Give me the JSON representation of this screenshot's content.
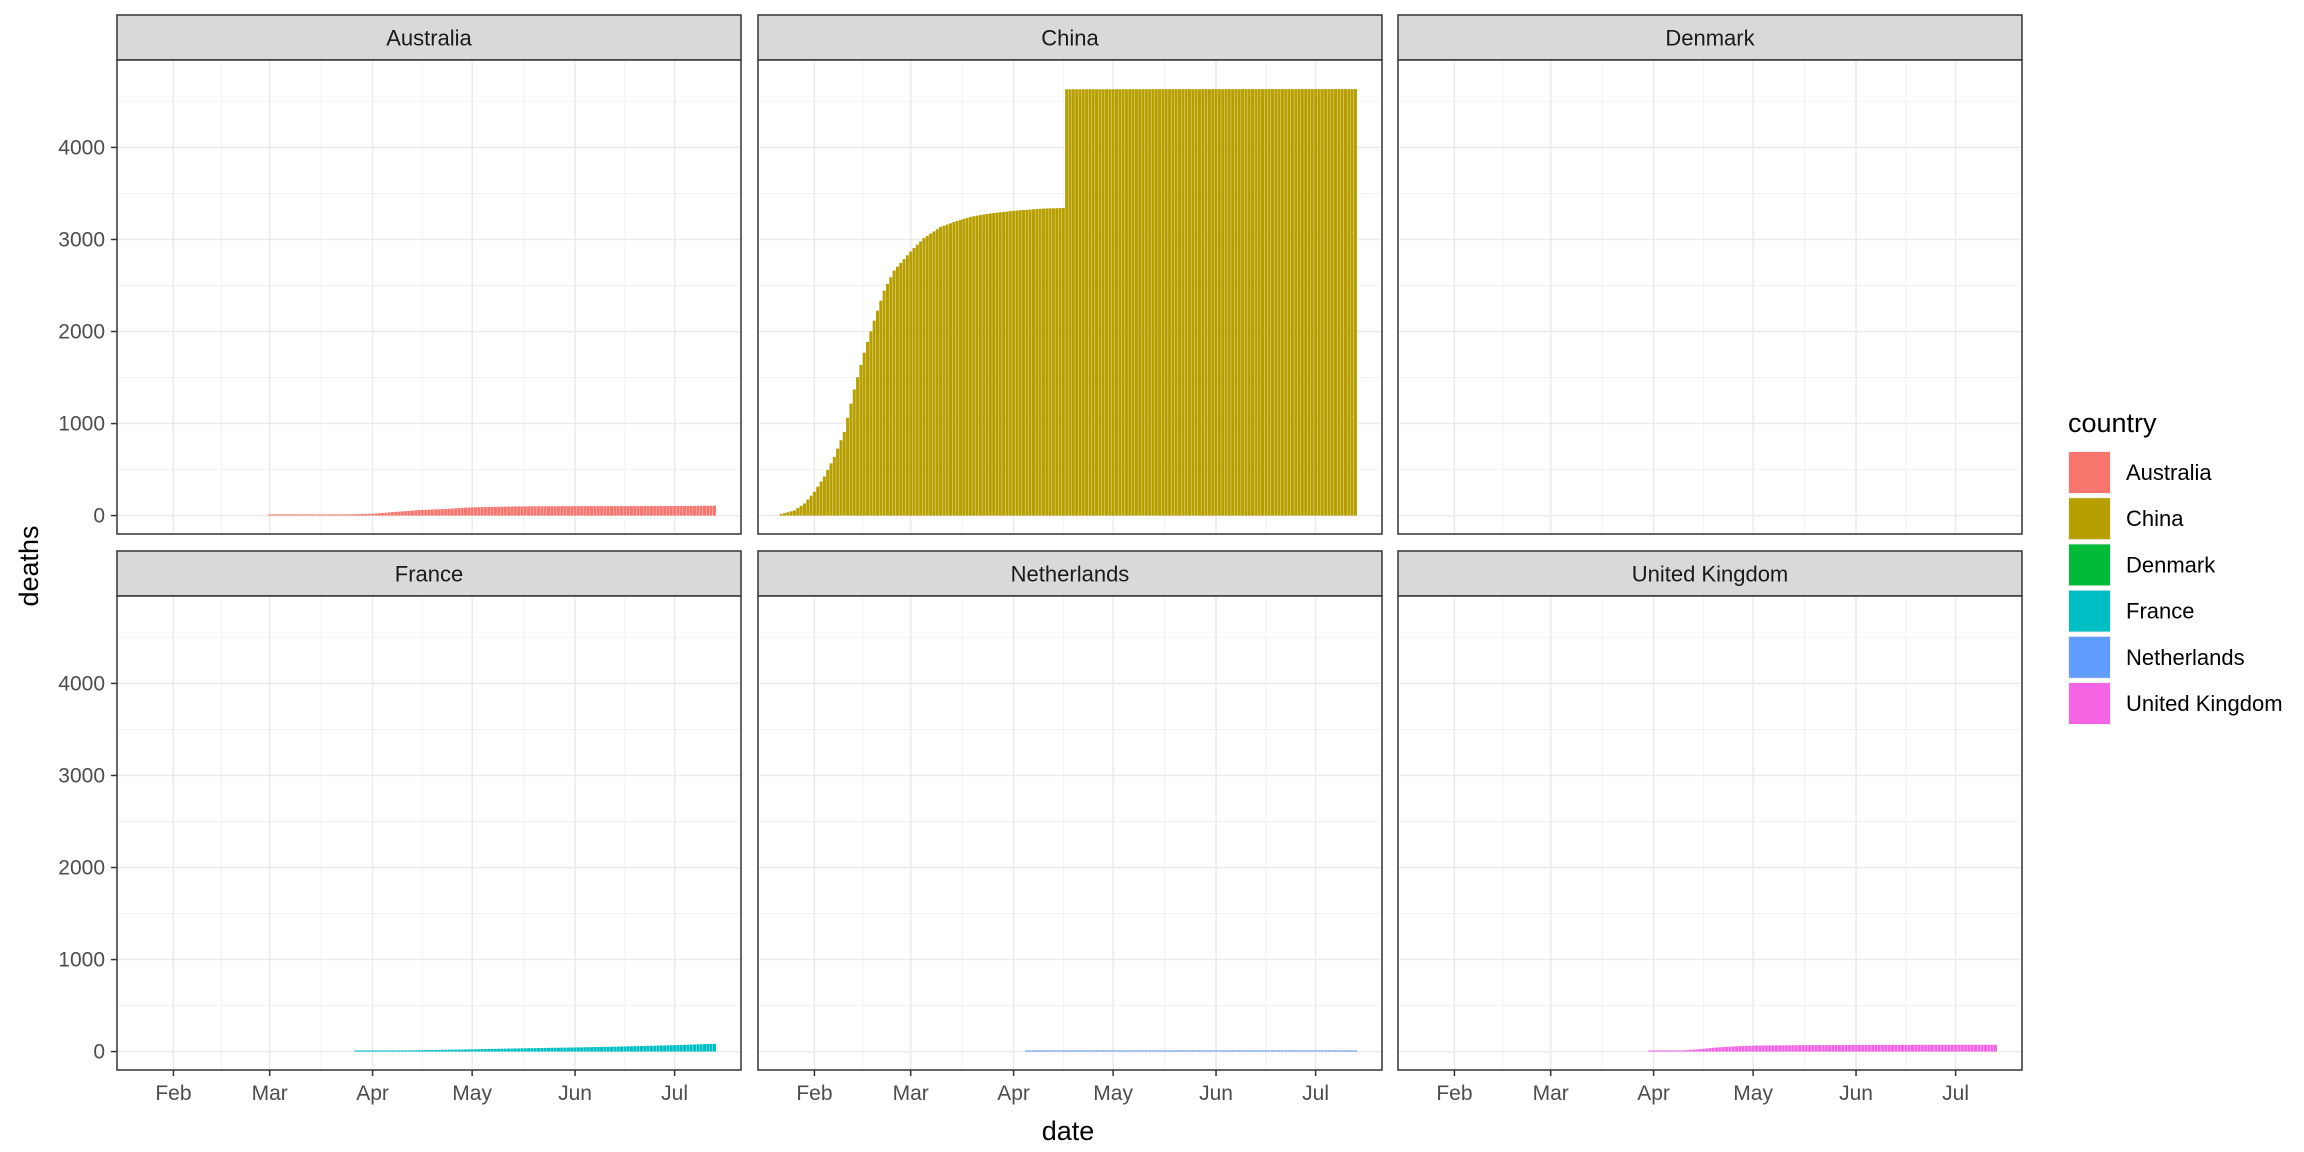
{
  "chart_data": {
    "type": "bar",
    "facet_layout": "2x3 grid, shared axes",
    "xlabel": "date",
    "ylabel": "deaths",
    "x_ticks": [
      "Feb",
      "Mar",
      "Apr",
      "May",
      "Jun",
      "Jul"
    ],
    "x_tick_dates": [
      "2020-02-01",
      "2020-03-01",
      "2020-04-01",
      "2020-05-01",
      "2020-06-01",
      "2020-07-01"
    ],
    "xlim": [
      "2020-01-15",
      "2020-07-21"
    ],
    "y_ticks": [
      0,
      1000,
      2000,
      3000,
      4000
    ],
    "ylim": [
      -200,
      4950
    ],
    "grid": true,
    "legend": {
      "title": "country",
      "position": "right",
      "entries": [
        "Australia",
        "China",
        "Denmark",
        "France",
        "Netherlands",
        "United Kingdom"
      ]
    },
    "colors": {
      "Australia": "#F8766D",
      "China": "#B79F00",
      "Denmark": "#00BA38",
      "France": "#00BFC4",
      "Netherlands": "#619CFF",
      "United Kingdom": "#F564E3"
    },
    "facets": [
      {
        "name": "Australia",
        "series": [
          [
            "2020-03-01",
            1
          ],
          [
            "2020-03-10",
            3
          ],
          [
            "2020-03-20",
            7
          ],
          [
            "2020-03-25",
            13
          ],
          [
            "2020-04-01",
            20
          ],
          [
            "2020-04-08",
            40
          ],
          [
            "2020-04-15",
            60
          ],
          [
            "2020-04-22",
            70
          ],
          [
            "2020-05-01",
            90
          ],
          [
            "2020-05-15",
            100
          ],
          [
            "2020-06-01",
            103
          ],
          [
            "2020-06-15",
            103
          ],
          [
            "2020-07-01",
            104
          ],
          [
            "2020-07-13",
            108
          ]
        ]
      },
      {
        "name": "China",
        "series": [
          [
            "2020-01-22",
            17
          ],
          [
            "2020-01-26",
            56
          ],
          [
            "2020-01-29",
            132
          ],
          [
            "2020-02-01",
            259
          ],
          [
            "2020-02-04",
            425
          ],
          [
            "2020-02-07",
            638
          ],
          [
            "2020-02-10",
            909
          ],
          [
            "2020-02-13",
            1370
          ],
          [
            "2020-02-16",
            1770
          ],
          [
            "2020-02-19",
            2118
          ],
          [
            "2020-02-22",
            2444
          ],
          [
            "2020-02-25",
            2663
          ],
          [
            "2020-03-01",
            2870
          ],
          [
            "2020-03-05",
            3015
          ],
          [
            "2020-03-10",
            3136
          ],
          [
            "2020-03-15",
            3203
          ],
          [
            "2020-03-20",
            3253
          ],
          [
            "2020-03-25",
            3283
          ],
          [
            "2020-04-01",
            3312
          ],
          [
            "2020-04-10",
            3336
          ],
          [
            "2020-04-16",
            3342
          ],
          [
            "2020-04-17",
            4632
          ],
          [
            "2020-05-15",
            4633
          ],
          [
            "2020-06-15",
            4634
          ],
          [
            "2020-07-13",
            4634
          ]
        ]
      },
      {
        "name": "Denmark",
        "series": []
      },
      {
        "name": "France",
        "series": [
          [
            "2020-03-27",
            1
          ],
          [
            "2020-04-01",
            5
          ],
          [
            "2020-04-15",
            15
          ],
          [
            "2020-05-01",
            25
          ],
          [
            "2020-05-15",
            35
          ],
          [
            "2020-06-01",
            45
          ],
          [
            "2020-06-15",
            55
          ],
          [
            "2020-07-01",
            70
          ],
          [
            "2020-07-13",
            85
          ]
        ]
      },
      {
        "name": "Netherlands",
        "series": [
          [
            "2020-04-05",
            1
          ],
          [
            "2020-04-20",
            4
          ],
          [
            "2020-05-10",
            6
          ],
          [
            "2020-06-01",
            8
          ],
          [
            "2020-06-20",
            10
          ],
          [
            "2020-07-13",
            12
          ]
        ]
      },
      {
        "name": "United Kingdom",
        "series": [
          [
            "2020-03-31",
            1
          ],
          [
            "2020-04-05",
            5
          ],
          [
            "2020-04-10",
            13
          ],
          [
            "2020-04-15",
            27
          ],
          [
            "2020-04-20",
            45
          ],
          [
            "2020-04-25",
            56
          ],
          [
            "2020-05-01",
            65
          ],
          [
            "2020-05-15",
            70
          ],
          [
            "2020-06-01",
            72
          ],
          [
            "2020-06-15",
            73
          ],
          [
            "2020-07-01",
            74
          ],
          [
            "2020-07-13",
            74
          ]
        ]
      }
    ]
  }
}
